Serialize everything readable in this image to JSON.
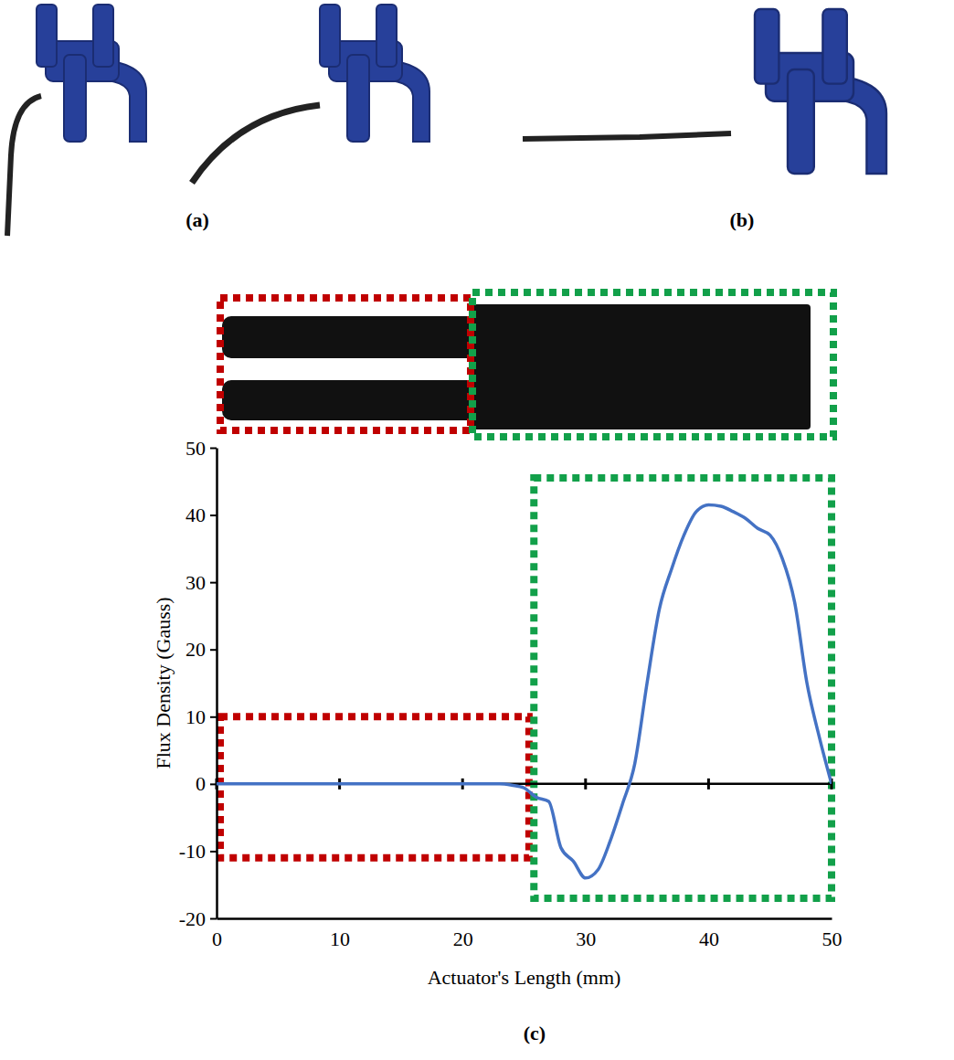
{
  "panels": {
    "a": "(a)",
    "b": "(b)",
    "c": "(c)"
  },
  "chart_data": {
    "type": "line",
    "x_label": "Actuator's Length (mm)",
    "y_label": "Flux Density (Gauss)",
    "x": [
      0,
      2,
      4,
      6,
      8,
      10,
      12,
      14,
      16,
      18,
      20,
      22,
      23,
      24,
      25,
      26,
      27,
      28,
      29,
      30,
      31,
      32,
      33,
      34,
      35,
      36,
      37,
      38,
      39,
      40,
      41,
      42,
      43,
      44,
      45,
      46,
      47,
      48,
      49,
      50
    ],
    "values": [
      0,
      0,
      0,
      0,
      0,
      0,
      0,
      0,
      0,
      0,
      0,
      0,
      0,
      -0.2,
      -0.6,
      -2,
      -2.6,
      -9.5,
      -11.5,
      -14,
      -12.8,
      -8.5,
      -3,
      3,
      15,
      26,
      32,
      37,
      40.5,
      41.5,
      41.3,
      40.5,
      39.5,
      38,
      37,
      33.5,
      27,
      15,
      7,
      0
    ],
    "color": "#4472c4",
    "xlim": [
      0,
      50
    ],
    "ylim": [
      -20,
      50
    ],
    "xticks": [
      0,
      10,
      20,
      30,
      40,
      50
    ],
    "yticks": [
      -20,
      -10,
      0,
      10,
      20,
      30,
      40,
      50
    ],
    "regions": [
      {
        "x": [
          0.3,
          25.4
        ],
        "y": [
          -11,
          10
        ],
        "color": "#c00000"
      },
      {
        "x": [
          25.8,
          50
        ],
        "y": [
          -17,
          45.5
        ],
        "color": "#12a04a"
      }
    ]
  }
}
